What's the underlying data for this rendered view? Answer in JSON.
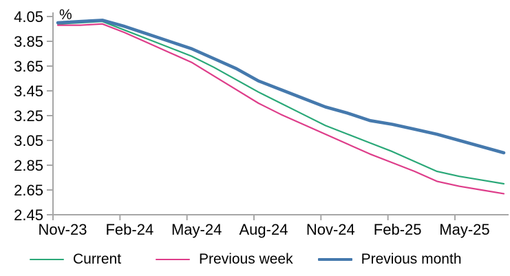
{
  "page": {
    "background": "#ffffff"
  },
  "chart_data": {
    "type": "line",
    "title": "",
    "unit_label": "%",
    "xlabel": "",
    "ylabel": "%",
    "x": [
      "Nov-23",
      "Dec-23",
      "Jan-24",
      "Feb-24",
      "Mar-24",
      "Apr-24",
      "May-24",
      "Jun-24",
      "Jul-24",
      "Aug-24",
      "Sep-24",
      "Oct-24",
      "Nov-24",
      "Dec-24",
      "Jan-25",
      "Feb-25",
      "Mar-25",
      "Apr-25",
      "May-25",
      "Jun-25",
      "Jul-25"
    ],
    "x_axis_tick_labels": [
      "Nov-23",
      "Feb-24",
      "May-24",
      "Aug-24",
      "Nov-24",
      "Feb-25",
      "May-25"
    ],
    "y_ticks": [
      4.05,
      3.85,
      3.65,
      3.45,
      3.25,
      3.05,
      2.85,
      2.65,
      2.45
    ],
    "ylim": [
      2.45,
      4.05
    ],
    "grid": false,
    "legend_position": "bottom",
    "axis_color": "#a6a6a6",
    "text_color": "#000000",
    "series": [
      {
        "name": "Current",
        "color": "#2aa878",
        "line_width": 2.2,
        "values": [
          3.99,
          4.0,
          4.01,
          3.94,
          3.87,
          3.8,
          3.73,
          3.64,
          3.54,
          3.44,
          3.35,
          3.26,
          3.17,
          3.1,
          3.03,
          2.96,
          2.88,
          2.8,
          2.76,
          2.73,
          2.7
        ]
      },
      {
        "name": "Previous week",
        "color": "#de3d8a",
        "line_width": 2.2,
        "values": [
          3.98,
          3.98,
          3.99,
          3.92,
          3.84,
          3.76,
          3.68,
          3.57,
          3.46,
          3.35,
          3.26,
          3.18,
          3.1,
          3.02,
          2.94,
          2.87,
          2.8,
          2.72,
          2.68,
          2.65,
          2.62
        ]
      },
      {
        "name": "Previous month",
        "color": "#4579ad",
        "line_width": 4.6,
        "values": [
          4.0,
          4.01,
          4.02,
          3.97,
          3.91,
          3.85,
          3.79,
          3.71,
          3.63,
          3.53,
          3.46,
          3.39,
          3.32,
          3.27,
          3.21,
          3.18,
          3.14,
          3.1,
          3.05,
          3.0,
          2.95
        ]
      }
    ]
  }
}
